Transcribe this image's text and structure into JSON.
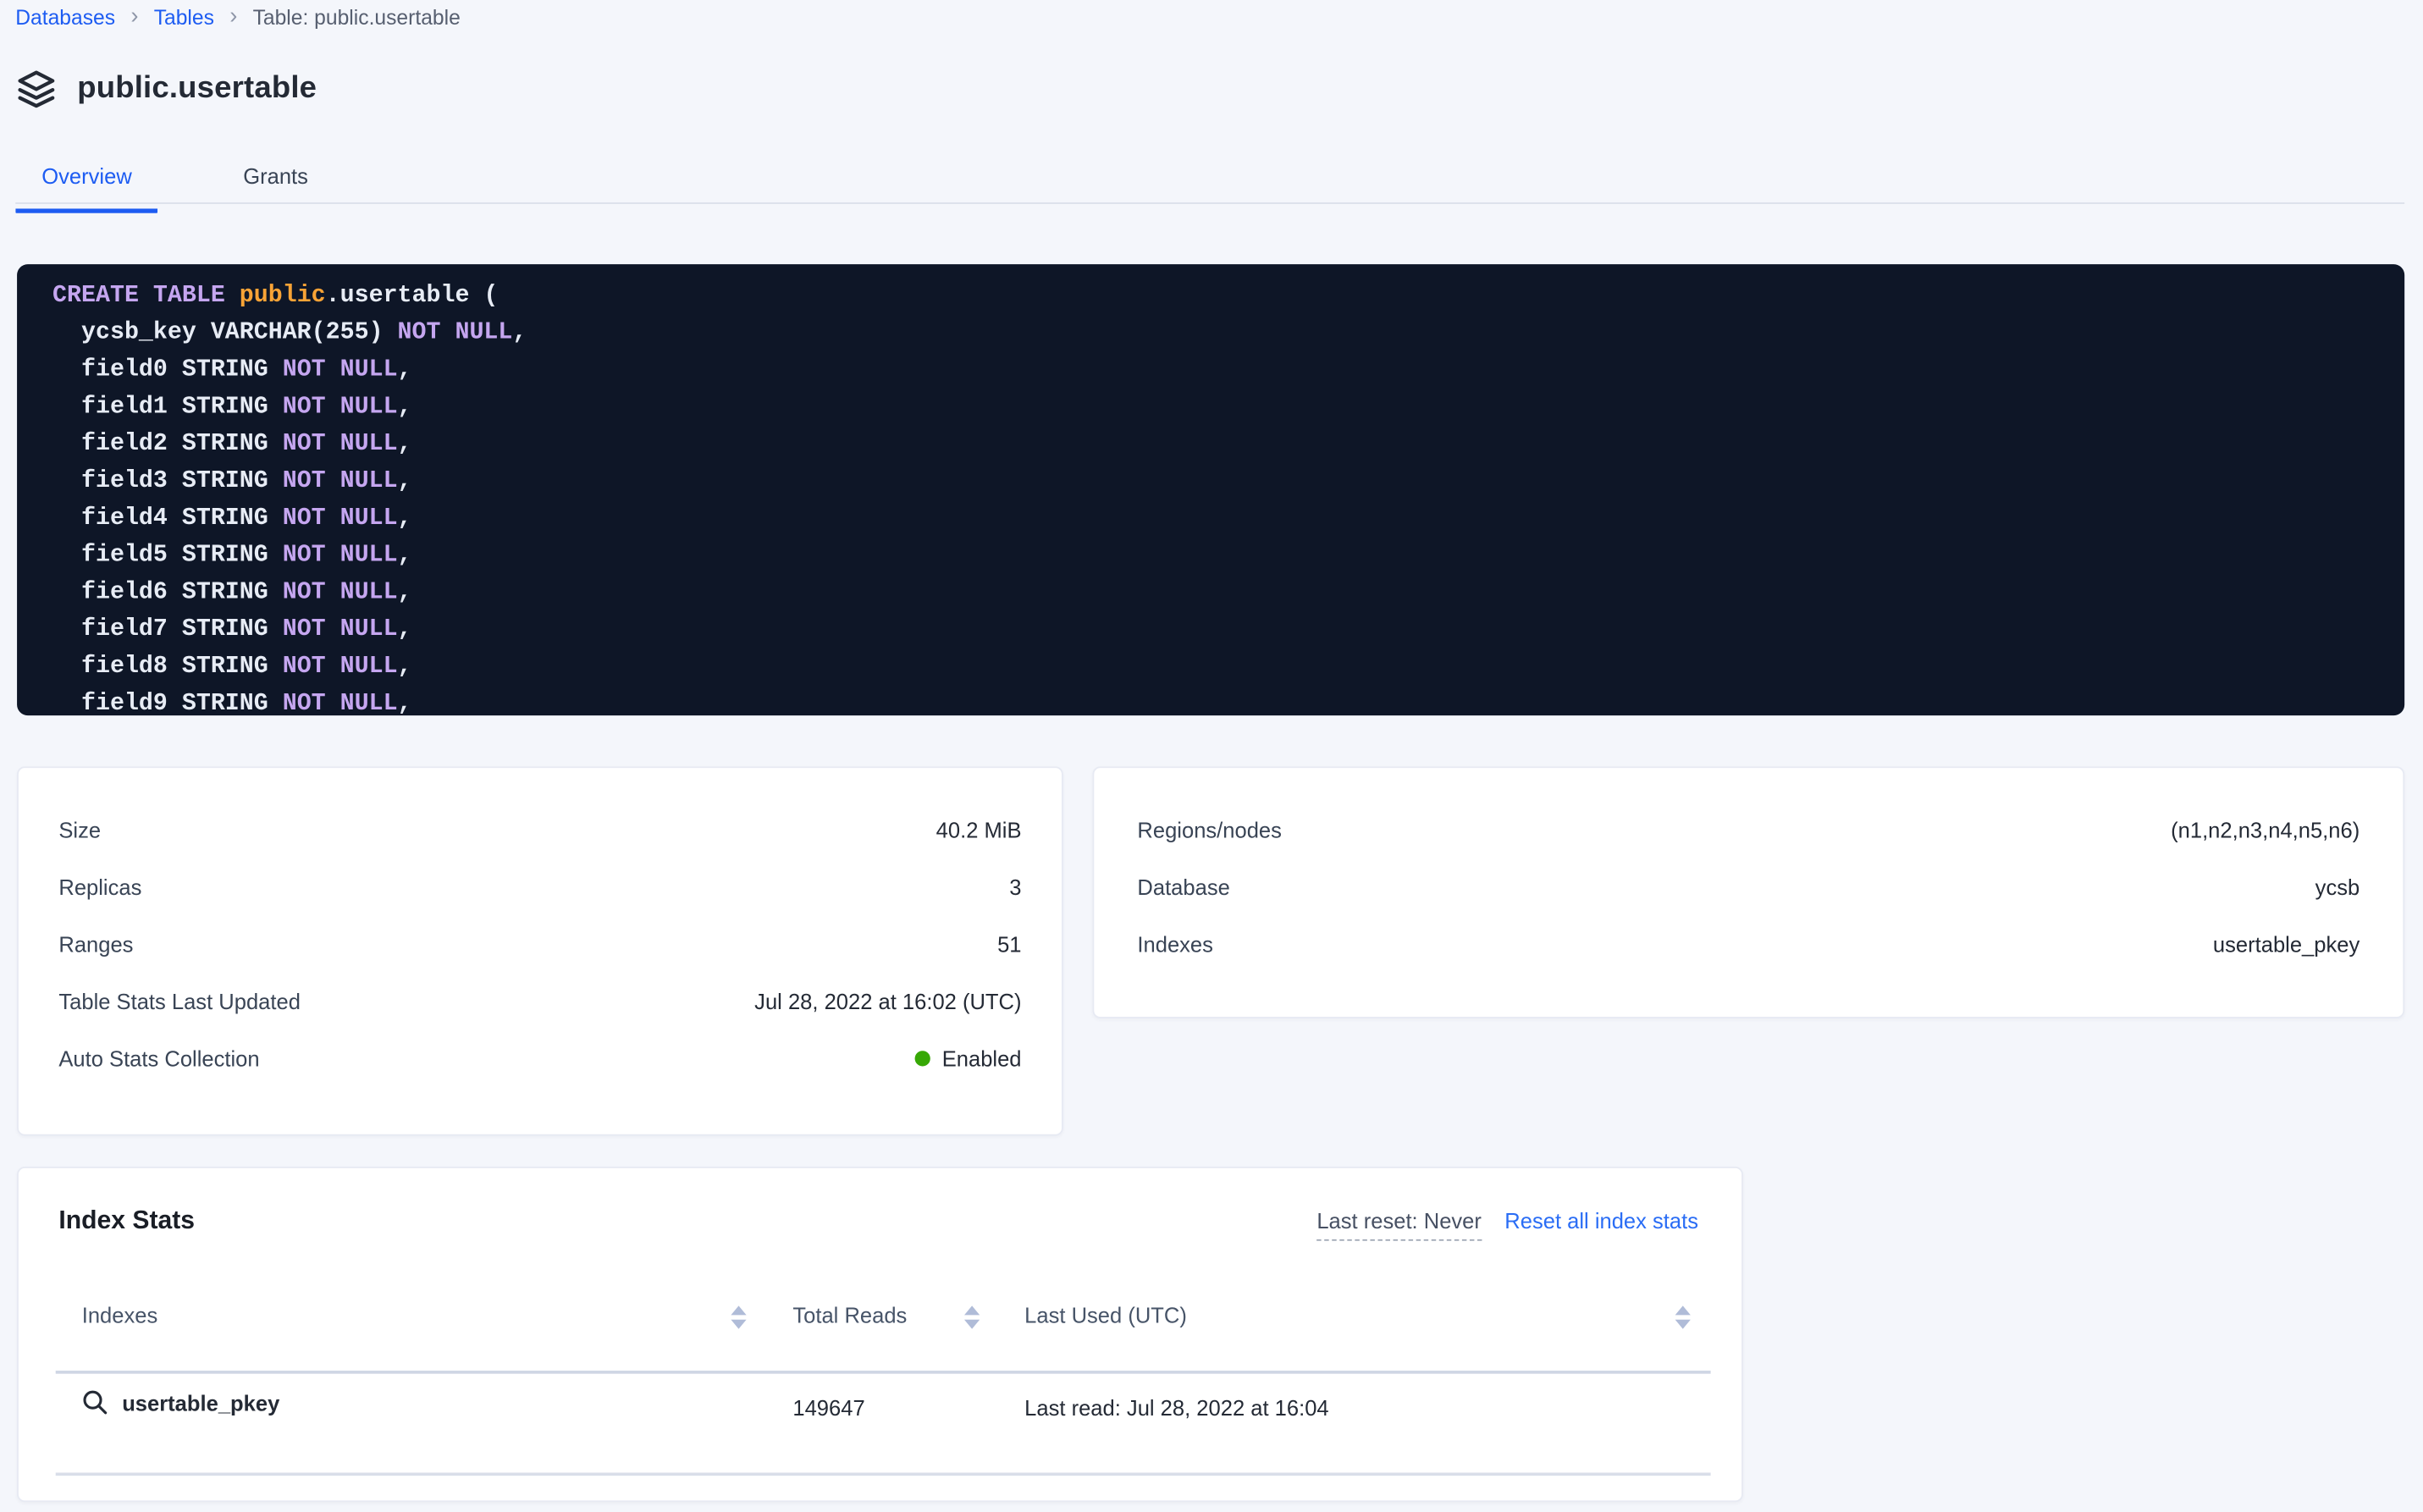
{
  "breadcrumb": {
    "items": [
      {
        "label": "Databases"
      },
      {
        "label": "Tables"
      }
    ],
    "current": "Table: public.usertable"
  },
  "page": {
    "title": "public.usertable"
  },
  "tabs": [
    {
      "label": "Overview",
      "active": true
    },
    {
      "label": "Grants",
      "active": false
    }
  ],
  "sql": {
    "lines": [
      [
        {
          "t": "CREATE TABLE ",
          "s": "kw"
        },
        {
          "t": "public",
          "s": "ent"
        },
        {
          "t": ".usertable (",
          "s": "pl"
        }
      ],
      [
        {
          "t": "  ycsb_key VARCHAR(255) ",
          "s": "pl"
        },
        {
          "t": "NOT NULL",
          "s": "kw"
        },
        {
          "t": ",",
          "s": "pl"
        }
      ],
      [
        {
          "t": "  field0 STRING ",
          "s": "pl"
        },
        {
          "t": "NOT NULL",
          "s": "kw"
        },
        {
          "t": ",",
          "s": "pl"
        }
      ],
      [
        {
          "t": "  field1 STRING ",
          "s": "pl"
        },
        {
          "t": "NOT NULL",
          "s": "kw"
        },
        {
          "t": ",",
          "s": "pl"
        }
      ],
      [
        {
          "t": "  field2 STRING ",
          "s": "pl"
        },
        {
          "t": "NOT NULL",
          "s": "kw"
        },
        {
          "t": ",",
          "s": "pl"
        }
      ],
      [
        {
          "t": "  field3 STRING ",
          "s": "pl"
        },
        {
          "t": "NOT NULL",
          "s": "kw"
        },
        {
          "t": ",",
          "s": "pl"
        }
      ],
      [
        {
          "t": "  field4 STRING ",
          "s": "pl"
        },
        {
          "t": "NOT NULL",
          "s": "kw"
        },
        {
          "t": ",",
          "s": "pl"
        }
      ],
      [
        {
          "t": "  field5 STRING ",
          "s": "pl"
        },
        {
          "t": "NOT NULL",
          "s": "kw"
        },
        {
          "t": ",",
          "s": "pl"
        }
      ],
      [
        {
          "t": "  field6 STRING ",
          "s": "pl"
        },
        {
          "t": "NOT NULL",
          "s": "kw"
        },
        {
          "t": ",",
          "s": "pl"
        }
      ],
      [
        {
          "t": "  field7 STRING ",
          "s": "pl"
        },
        {
          "t": "NOT NULL",
          "s": "kw"
        },
        {
          "t": ",",
          "s": "pl"
        }
      ],
      [
        {
          "t": "  field8 STRING ",
          "s": "pl"
        },
        {
          "t": "NOT NULL",
          "s": "kw"
        },
        {
          "t": ",",
          "s": "pl"
        }
      ],
      [
        {
          "t": "  field9 STRING ",
          "s": "pl"
        },
        {
          "t": "NOT NULL",
          "s": "kw"
        },
        {
          "t": ",",
          "s": "pl"
        }
      ]
    ]
  },
  "details": {
    "left": [
      {
        "label": "Size",
        "value": "40.2 MiB"
      },
      {
        "label": "Replicas",
        "value": "3"
      },
      {
        "label": "Ranges",
        "value": "51"
      },
      {
        "label": "Table Stats Last Updated",
        "value": "Jul 28, 2022 at 16:02 (UTC)"
      },
      {
        "label": "Auto Stats Collection",
        "value": "Enabled",
        "status_dot": true
      }
    ],
    "right": [
      {
        "label": "Regions/nodes",
        "value": "(n1,n2,n3,n4,n5,n6)"
      },
      {
        "label": "Database",
        "value": "ycsb"
      },
      {
        "label": "Indexes",
        "value": "usertable_pkey"
      }
    ]
  },
  "index_stats": {
    "title": "Index Stats",
    "last_reset_label": "Last reset: Never",
    "reset_link": "Reset all index stats",
    "columns": [
      "Indexes",
      "Total Reads",
      "Last Used (UTC)"
    ],
    "rows": [
      {
        "name": "usertable_pkey",
        "total_reads": "149647",
        "last_used": "Last read: Jul 28, 2022 at 16:04"
      }
    ]
  },
  "colors": {
    "accent_blue": "#1d5cf2",
    "link_blue": "#2a6df5",
    "status_green": "#37a806",
    "code_bg": "#0e1627",
    "code_keyword": "#c5a6f0",
    "code_entity": "#f8a336"
  }
}
